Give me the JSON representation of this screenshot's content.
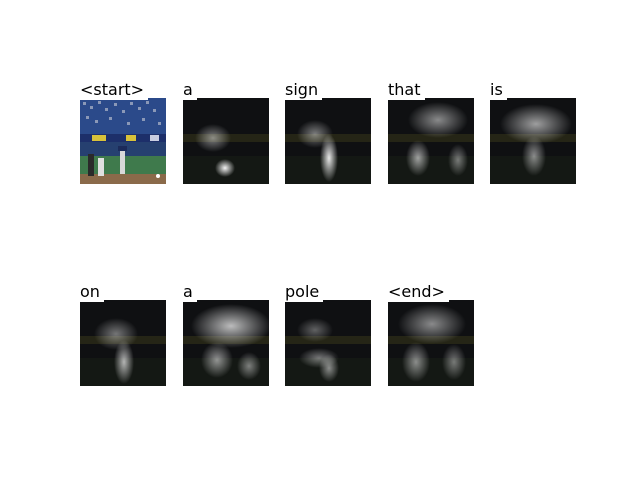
{
  "words": [
    "<start>",
    "a",
    "sign",
    "that",
    "is",
    "on",
    "a",
    "pole",
    "<end>"
  ],
  "panels": [
    {
      "word_index": 0,
      "kind": "image"
    },
    {
      "word_index": 1,
      "kind": "attention"
    },
    {
      "word_index": 2,
      "kind": "attention"
    },
    {
      "word_index": 3,
      "kind": "attention"
    },
    {
      "word_index": 4,
      "kind": "attention"
    },
    {
      "word_index": 5,
      "kind": "attention"
    },
    {
      "word_index": 6,
      "kind": "attention"
    },
    {
      "word_index": 7,
      "kind": "attention"
    },
    {
      "word_index": 8,
      "kind": "attention"
    }
  ],
  "colors": {
    "field_green": "#3f7a4c",
    "stands_blue": "#2b4a8a",
    "banner_yellow": "#d8c23a",
    "overlay_dark": "#101010"
  }
}
